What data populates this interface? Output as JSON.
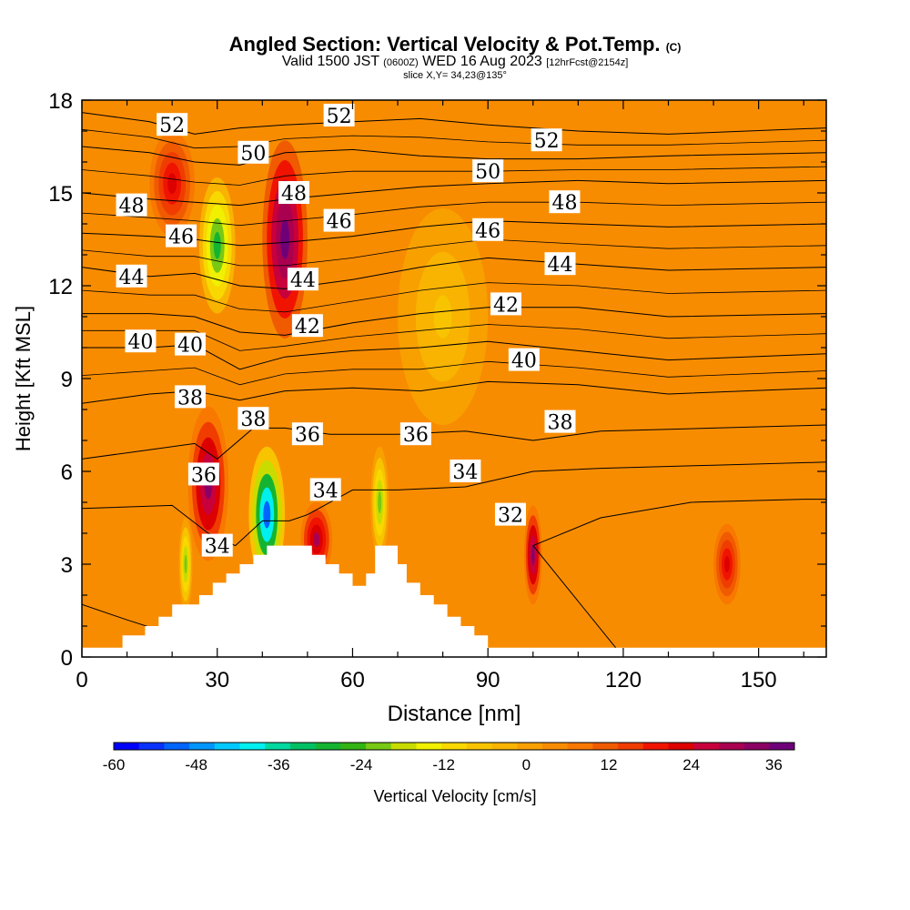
{
  "header": {
    "title": "Angled Section: Vertical Velocity & Pot.Temp.",
    "title_mark": "(C)",
    "valid_prefix": "Valid 1500 JST",
    "valid_utc": "(0600Z)",
    "valid_date": "WED 16 Aug 2023",
    "forecast": "[12hrFcst@2154z]",
    "slice": "slice X,Y= 34,23@135°"
  },
  "chart_data": {
    "type": "heatmap",
    "title": "Angled Section: Vertical Velocity & Pot.Temp.",
    "xlabel": "Distance [nm]",
    "ylabel": "Height [Kft MSL]",
    "xlim": [
      0,
      165
    ],
    "ylim": [
      0,
      18
    ],
    "x_ticks": [
      0,
      30,
      60,
      90,
      120,
      150
    ],
    "y_ticks": [
      0,
      3,
      6,
      9,
      12,
      15,
      18
    ],
    "background_value_cm_s": 4,
    "velocity_cells": [
      {
        "x": 20,
        "z": 15.3,
        "value": 22
      },
      {
        "x": 30,
        "z": 13.3,
        "value": -28
      },
      {
        "x": 45,
        "z": 13.5,
        "value": 38
      },
      {
        "x": 28,
        "z": 5.6,
        "value": 32
      },
      {
        "x": 23,
        "z": 3.0,
        "value": -22
      },
      {
        "x": 41,
        "z": 4.6,
        "value": -50
      },
      {
        "x": 52,
        "z": 3.8,
        "value": 28
      },
      {
        "x": 66,
        "z": 5.0,
        "value": -22
      },
      {
        "x": 100,
        "z": 3.3,
        "value": 32
      },
      {
        "x": 143,
        "z": 3.0,
        "value": 22
      },
      {
        "x": 80,
        "z": 11.0,
        "value": -6
      }
    ],
    "theta_contours": [
      {
        "label": "32",
        "value": 32,
        "points": [
          [
            0,
            1.7
          ],
          [
            10,
            1.2
          ],
          [
            25,
            0.5
          ],
          [
            34,
            0
          ],
          [
            120,
            0
          ],
          [
            100,
            3.6
          ],
          [
            115,
            4.5
          ],
          [
            135,
            5.0
          ],
          [
            160,
            5.1
          ],
          [
            165,
            5.1
          ]
        ]
      },
      {
        "label": "34",
        "value": 34,
        "points": [
          [
            0,
            4.8
          ],
          [
            20,
            4.9
          ],
          [
            28,
            4.0
          ],
          [
            34,
            3.6
          ],
          [
            40,
            4.4
          ],
          [
            46,
            4.4
          ],
          [
            50,
            4.6
          ],
          [
            60,
            5.4
          ],
          [
            70,
            5.4
          ],
          [
            85,
            5.5
          ],
          [
            100,
            6.0
          ],
          [
            115,
            6.1
          ],
          [
            140,
            6.2
          ],
          [
            165,
            6.3
          ]
        ]
      },
      {
        "label": "36",
        "value": 36,
        "points": [
          [
            0,
            6.4
          ],
          [
            15,
            6.7
          ],
          [
            25,
            6.9
          ],
          [
            30,
            6.4
          ],
          [
            38,
            7.4
          ],
          [
            45,
            7.4
          ],
          [
            55,
            7.2
          ],
          [
            70,
            7.2
          ],
          [
            85,
            7.3
          ],
          [
            100,
            7.0
          ],
          [
            115,
            7.3
          ],
          [
            140,
            7.4
          ],
          [
            165,
            7.5
          ]
        ]
      },
      {
        "label": "38",
        "value": 38,
        "points": [
          [
            0,
            8.2
          ],
          [
            15,
            8.5
          ],
          [
            25,
            8.6
          ],
          [
            35,
            8.3
          ],
          [
            45,
            8.6
          ],
          [
            60,
            8.7
          ],
          [
            75,
            8.6
          ],
          [
            90,
            8.9
          ],
          [
            110,
            8.8
          ],
          [
            130,
            8.5
          ],
          [
            165,
            8.7
          ]
        ]
      },
      {
        "label": "40",
        "value": 40,
        "points": [
          [
            0,
            10.0
          ],
          [
            15,
            10.0
          ],
          [
            25,
            10.1
          ],
          [
            35,
            9.3
          ],
          [
            45,
            9.7
          ],
          [
            60,
            9.9
          ],
          [
            75,
            10.0
          ],
          [
            90,
            10.2
          ],
          [
            110,
            9.9
          ],
          [
            130,
            9.6
          ],
          [
            165,
            9.8
          ]
        ]
      },
      {
        "label": "42",
        "value": 42,
        "points": [
          [
            0,
            11.1
          ],
          [
            15,
            11.1
          ],
          [
            25,
            11.0
          ],
          [
            35,
            10.5
          ],
          [
            45,
            10.4
          ],
          [
            60,
            10.8
          ],
          [
            75,
            11.1
          ],
          [
            90,
            11.3
          ],
          [
            110,
            11.3
          ],
          [
            130,
            11.0
          ],
          [
            165,
            11.1
          ]
        ]
      },
      {
        "label": "44",
        "value": 44,
        "points": [
          [
            0,
            12.6
          ],
          [
            15,
            12.3
          ],
          [
            25,
            12.4
          ],
          [
            35,
            12.0
          ],
          [
            45,
            11.9
          ],
          [
            60,
            12.2
          ],
          [
            75,
            12.6
          ],
          [
            90,
            12.9
          ],
          [
            110,
            12.7
          ],
          [
            130,
            12.5
          ],
          [
            165,
            12.6
          ]
        ]
      },
      {
        "label": "46",
        "value": 46,
        "points": [
          [
            0,
            13.7
          ],
          [
            15,
            13.6
          ],
          [
            25,
            13.5
          ],
          [
            35,
            13.3
          ],
          [
            45,
            13.4
          ],
          [
            60,
            13.6
          ],
          [
            75,
            13.9
          ],
          [
            90,
            14.1
          ],
          [
            110,
            14.0
          ],
          [
            130,
            13.9
          ],
          [
            165,
            14.0
          ]
        ]
      },
      {
        "label": "48",
        "value": 48,
        "points": [
          [
            0,
            15.0
          ],
          [
            15,
            14.8
          ],
          [
            25,
            14.7
          ],
          [
            35,
            14.6
          ],
          [
            45,
            14.8
          ],
          [
            60,
            15.0
          ],
          [
            75,
            15.2
          ],
          [
            90,
            15.3
          ],
          [
            110,
            15.4
          ],
          [
            130,
            15.3
          ],
          [
            165,
            15.4
          ]
        ]
      },
      {
        "label": "50",
        "value": 50,
        "points": [
          [
            0,
            16.5
          ],
          [
            15,
            16.3
          ],
          [
            25,
            16.0
          ],
          [
            35,
            15.9
          ],
          [
            45,
            16.3
          ],
          [
            60,
            16.4
          ],
          [
            75,
            16.2
          ],
          [
            90,
            16.1
          ],
          [
            110,
            16.1
          ],
          [
            130,
            16.2
          ],
          [
            165,
            16.3
          ]
        ]
      },
      {
        "label": "52",
        "value": 52,
        "points": [
          [
            0,
            17.6
          ],
          [
            15,
            17.3
          ],
          [
            25,
            16.9
          ],
          [
            35,
            17.1
          ],
          [
            45,
            17.2
          ],
          [
            60,
            17.3
          ],
          [
            75,
            17.4
          ],
          [
            90,
            17.2
          ],
          [
            110,
            17.0
          ],
          [
            130,
            16.9
          ],
          [
            165,
            17.1
          ]
        ]
      }
    ],
    "contour_labels": [
      {
        "text": "52",
        "x": 20,
        "z": 17.2
      },
      {
        "text": "50",
        "x": 38,
        "z": 16.3
      },
      {
        "text": "52",
        "x": 57,
        "z": 17.5
      },
      {
        "text": "52",
        "x": 103,
        "z": 16.7
      },
      {
        "text": "50",
        "x": 90,
        "z": 15.7
      },
      {
        "text": "48",
        "x": 47,
        "z": 15.0
      },
      {
        "text": "48",
        "x": 107,
        "z": 14.7
      },
      {
        "text": "48",
        "x": 11,
        "z": 14.6
      },
      {
        "text": "46",
        "x": 22,
        "z": 13.6
      },
      {
        "text": "46",
        "x": 57,
        "z": 14.1
      },
      {
        "text": "46",
        "x": 90,
        "z": 13.8
      },
      {
        "text": "44",
        "x": 11,
        "z": 12.3
      },
      {
        "text": "44",
        "x": 49,
        "z": 12.2
      },
      {
        "text": "44",
        "x": 106,
        "z": 12.7
      },
      {
        "text": "42",
        "x": 50,
        "z": 10.7
      },
      {
        "text": "42",
        "x": 94,
        "z": 11.4
      },
      {
        "text": "40",
        "x": 13,
        "z": 10.2
      },
      {
        "text": "40",
        "x": 24,
        "z": 10.1
      },
      {
        "text": "40",
        "x": 98,
        "z": 9.6
      },
      {
        "text": "38",
        "x": 24,
        "z": 8.4
      },
      {
        "text": "38",
        "x": 38,
        "z": 7.7
      },
      {
        "text": "38",
        "x": 106,
        "z": 7.6
      },
      {
        "text": "36",
        "x": 50,
        "z": 7.2
      },
      {
        "text": "36",
        "x": 74,
        "z": 7.2
      },
      {
        "text": "36",
        "x": 27,
        "z": 5.9
      },
      {
        "text": "34",
        "x": 85,
        "z": 6.0
      },
      {
        "text": "34",
        "x": 54,
        "z": 5.4
      },
      {
        "text": "34",
        "x": 30,
        "z": 3.6
      },
      {
        "text": "32",
        "x": 95,
        "z": 4.6
      }
    ],
    "terrain": [
      [
        0,
        0.3
      ],
      [
        9,
        0.3
      ],
      [
        9,
        0.7
      ],
      [
        14,
        0.7
      ],
      [
        14,
        1.0
      ],
      [
        17,
        1.0
      ],
      [
        17,
        1.3
      ],
      [
        20,
        1.3
      ],
      [
        20,
        1.7
      ],
      [
        26,
        1.7
      ],
      [
        26,
        2.0
      ],
      [
        29,
        2.0
      ],
      [
        29,
        2.4
      ],
      [
        32,
        2.4
      ],
      [
        32,
        2.7
      ],
      [
        35,
        2.7
      ],
      [
        35,
        3.0
      ],
      [
        38,
        3.0
      ],
      [
        38,
        3.3
      ],
      [
        41,
        3.3
      ],
      [
        41,
        3.6
      ],
      [
        51,
        3.6
      ],
      [
        51,
        3.3
      ],
      [
        54,
        3.3
      ],
      [
        54,
        3.0
      ],
      [
        57,
        3.0
      ],
      [
        57,
        2.7
      ],
      [
        60,
        2.7
      ],
      [
        60,
        2.3
      ],
      [
        63,
        2.3
      ],
      [
        63,
        2.7
      ],
      [
        65,
        2.7
      ],
      [
        65,
        3.6
      ],
      [
        70,
        3.6
      ],
      [
        70,
        3.0
      ],
      [
        72,
        3.0
      ],
      [
        72,
        2.4
      ],
      [
        75,
        2.4
      ],
      [
        75,
        2.0
      ],
      [
        78,
        2.0
      ],
      [
        78,
        1.7
      ],
      [
        81,
        1.7
      ],
      [
        81,
        1.3
      ],
      [
        84,
        1.3
      ],
      [
        84,
        1.0
      ],
      [
        87,
        1.0
      ],
      [
        87,
        0.7
      ],
      [
        90,
        0.7
      ],
      [
        90,
        0.3
      ],
      [
        165,
        0.3
      ]
    ],
    "colorbar": {
      "label": "Vertical Velocity [cm/s]",
      "ticks": [
        "-60",
        "-48",
        "-36",
        "-24",
        "-12",
        "0",
        "12",
        "24",
        "36"
      ],
      "colors": [
        "#0000ff",
        "#0a32ff",
        "#0064ff",
        "#0096ff",
        "#00c8ff",
        "#00f0f0",
        "#00d8a0",
        "#00c064",
        "#14b432",
        "#32b414",
        "#78c814",
        "#c8dc00",
        "#f0f000",
        "#f8d800",
        "#f8c400",
        "#f8b400",
        "#f8a000",
        "#f88c00",
        "#f87800",
        "#f05a00",
        "#f03c00",
        "#f01400",
        "#dc0000",
        "#c8003c",
        "#aa0050",
        "#8c0064",
        "#6e0078"
      ],
      "min": -60,
      "max": 39
    }
  }
}
